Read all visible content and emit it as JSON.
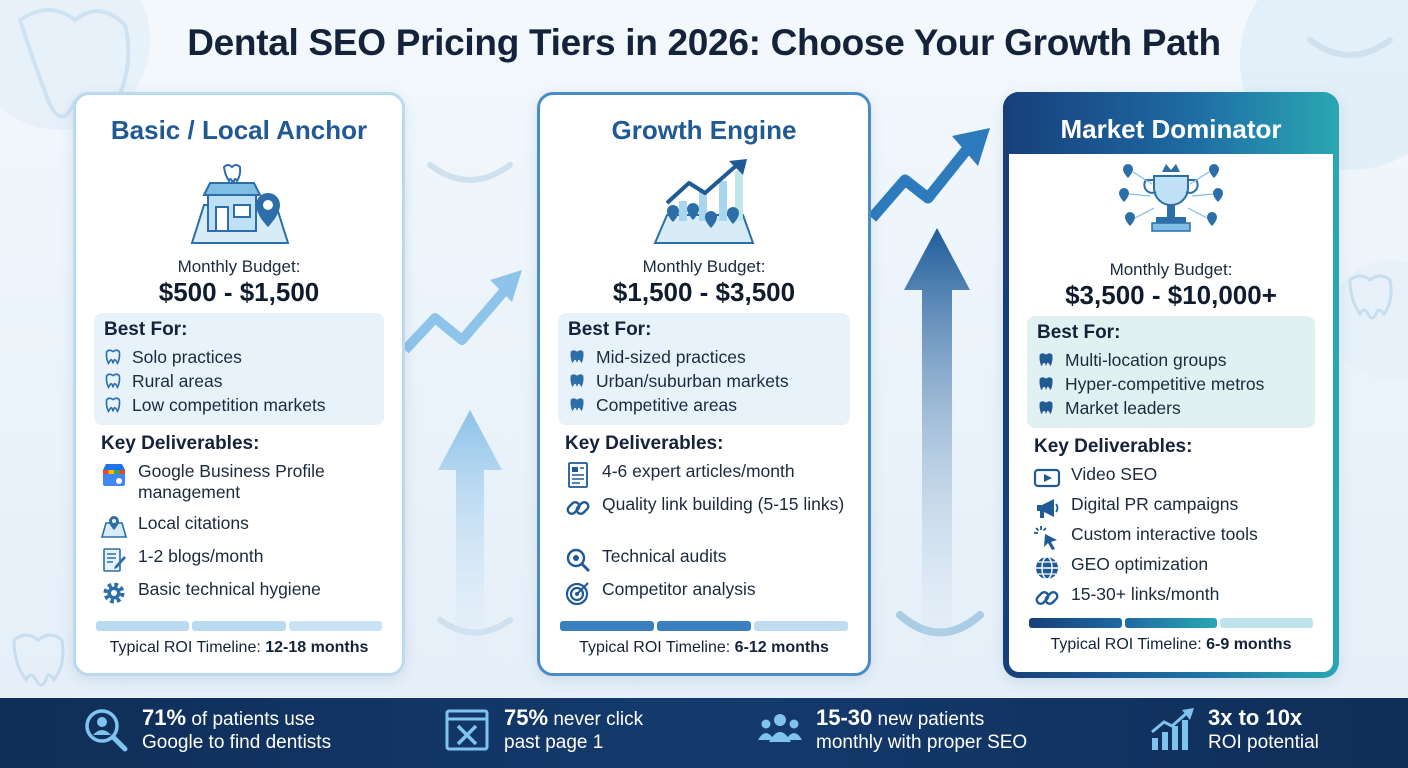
{
  "title": "Dental SEO Pricing Tiers in 2026: Choose Your Growth Path",
  "tiers": [
    {
      "name": "Basic / Local Anchor",
      "icon": "storefront-map-pin-icon",
      "budget_label": "Monthly Budget:",
      "budget": "$500 - $1,500",
      "best_for_title": "Best For:",
      "best_for": [
        "Solo practices",
        "Rural areas",
        "Low competition markets"
      ],
      "deliverables_title": "Key Deliverables:",
      "deliverables": [
        {
          "icon": "google-business-profile-icon",
          "text": "Google Business Profile management"
        },
        {
          "icon": "map-citation-icon",
          "text": "Local citations"
        },
        {
          "icon": "blog-pencil-icon",
          "text": "1-2 blogs/month"
        },
        {
          "icon": "gear-icon",
          "text": "Basic technical hygiene"
        }
      ],
      "roi_label": "Typical ROI Timeline:",
      "roi_value": "12-18 months"
    },
    {
      "name": "Growth Engine",
      "icon": "growth-chart-map-icon",
      "budget_label": "Monthly Budget:",
      "budget": "$1,500 - $3,500",
      "best_for_title": "Best For:",
      "best_for": [
        "Mid-sized practices",
        "Urban/suburban markets",
        "Competitive areas"
      ],
      "deliverables_title": "Key Deliverables:",
      "deliverables": [
        {
          "icon": "article-document-icon",
          "text": "4-6 expert articles/month"
        },
        {
          "icon": "chain-link-icon",
          "text": "Quality link building (5-15 links)"
        },
        {
          "icon": "audit-magnifier-icon",
          "text": "Technical audits"
        },
        {
          "icon": "target-icon",
          "text": "Competitor analysis"
        }
      ],
      "roi_label": "Typical ROI Timeline:",
      "roi_value": "6-12 months"
    },
    {
      "name": "Market Dominator",
      "icon": "trophy-crown-pins-icon",
      "budget_label": "Monthly Budget:",
      "budget": "$3,500 - $10,000+",
      "best_for_title": "Best For:",
      "best_for": [
        "Multi-location groups",
        "Hyper-competitive metros",
        "Market leaders"
      ],
      "deliverables_title": "Key Deliverables:",
      "deliverables": [
        {
          "icon": "video-play-icon",
          "text": "Video SEO"
        },
        {
          "icon": "megaphone-icon",
          "text": "Digital PR campaigns"
        },
        {
          "icon": "cursor-click-icon",
          "text": "Custom interactive tools"
        },
        {
          "icon": "globe-icon",
          "text": "GEO optimization"
        },
        {
          "icon": "chain-link-icon",
          "text": "15-30+ links/month"
        }
      ],
      "roi_label": "Typical ROI Timeline:",
      "roi_value": "6-9 months"
    }
  ],
  "stats": [
    {
      "icon": "search-person-icon",
      "highlight": "71%",
      "line1": " of patients use",
      "line2": "Google to find dentists"
    },
    {
      "icon": "browser-close-icon",
      "highlight": "75%",
      "line1": " never click",
      "line2": "past page 1"
    },
    {
      "icon": "people-group-icon",
      "highlight": "15-30",
      "line1": " new patients",
      "line2": "monthly with proper SEO"
    },
    {
      "icon": "bar-chart-arrow-icon",
      "highlight": "3x to 10x",
      "line1": "",
      "line2": "ROI potential"
    }
  ],
  "colors": {
    "basic_accent": "#b9daf0",
    "growth_accent": "#4a8cc6",
    "dominator_start": "#173f7a",
    "dominator_end": "#2aa7b3",
    "bottom_bar": "#143a6d"
  }
}
